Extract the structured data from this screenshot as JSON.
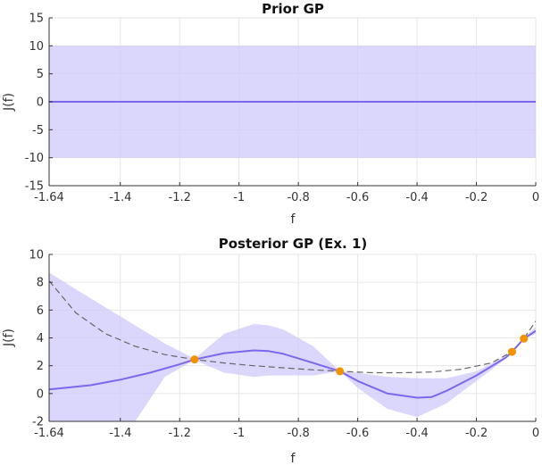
{
  "chart_data": [
    {
      "type": "line",
      "title": "Prior GP",
      "xlabel": "f",
      "ylabel": "J(f)",
      "xlim": [
        -1.64,
        0
      ],
      "ylim": [
        -15,
        15
      ],
      "xticks": [
        -1.64,
        -1.4,
        -1.2,
        -1,
        -0.8,
        -0.6,
        -0.4,
        -0.2,
        0
      ],
      "xtick_labels": [
        "-1.64",
        "-1.4",
        "-1.2",
        "-1",
        "-0.8",
        "-0.6",
        "-0.4",
        "-0.2",
        "0"
      ],
      "yticks": [
        -15,
        -10,
        -5,
        0,
        5,
        10,
        15
      ],
      "ytick_labels": [
        "-15",
        "-10",
        "-5",
        "0",
        "5",
        "10",
        "15"
      ],
      "grid": true,
      "series": [
        {
          "kind": "mean",
          "x": [
            -1.64,
            0
          ],
          "y": [
            0,
            0
          ]
        },
        {
          "kind": "confidence-band",
          "x": [
            -1.64,
            0
          ],
          "upper": [
            10,
            10
          ],
          "lower": [
            -10,
            -10
          ]
        }
      ],
      "colors": {
        "mean": "#7b68ee",
        "band": "#cfc8fb",
        "grid": "#e6e6e6"
      }
    },
    {
      "type": "line",
      "title": "Posterior GP (Ex. 1)",
      "xlabel": "f",
      "ylabel": "J(f)",
      "xlim": [
        -1.64,
        0
      ],
      "ylim": [
        -2,
        10
      ],
      "xticks": [
        -1.64,
        -1.4,
        -1.2,
        -1,
        -0.8,
        -0.6,
        -0.4,
        -0.2,
        0
      ],
      "xtick_labels": [
        "-1.64",
        "-1.4",
        "-1.2",
        "-1",
        "-0.8",
        "-0.6",
        "-0.4",
        "-0.2",
        "0"
      ],
      "yticks": [
        -2,
        0,
        2,
        4,
        6,
        8,
        10
      ],
      "ytick_labels": [
        "-2",
        "0",
        "2",
        "4",
        "6",
        "8",
        "10"
      ],
      "grid": true,
      "series": [
        {
          "kind": "mean",
          "x": [
            -1.64,
            -1.5,
            -1.4,
            -1.3,
            -1.2,
            -1.15,
            -1.05,
            -0.95,
            -0.9,
            -0.85,
            -0.75,
            -0.66,
            -0.6,
            -0.5,
            -0.4,
            -0.35,
            -0.3,
            -0.2,
            -0.1,
            -0.08,
            -0.04,
            0
          ],
          "y": [
            0.3,
            0.6,
            1.0,
            1.5,
            2.1,
            2.45,
            2.9,
            3.1,
            3.05,
            2.85,
            2.2,
            1.6,
            0.9,
            0.0,
            -0.3,
            -0.25,
            0.2,
            1.3,
            2.6,
            3.0,
            3.95,
            4.5
          ]
        },
        {
          "kind": "confidence-band",
          "x": [
            -1.64,
            -1.55,
            -1.45,
            -1.35,
            -1.25,
            -1.15,
            -1.05,
            -0.95,
            -0.9,
            -0.85,
            -0.75,
            -0.66,
            -0.6,
            -0.5,
            -0.4,
            -0.3,
            -0.2,
            -0.1,
            -0.08,
            -0.04,
            0
          ],
          "upper": [
            8.7,
            7.5,
            6.2,
            4.9,
            3.6,
            2.5,
            4.3,
            5.0,
            4.9,
            4.6,
            3.4,
            1.6,
            1.5,
            1.2,
            1.1,
            1.1,
            1.6,
            2.7,
            3.0,
            4.0,
            4.8
          ],
          "lower": [
            -2,
            -2,
            -2,
            -2,
            1.2,
            2.4,
            1.5,
            1.2,
            1.3,
            1.3,
            1.3,
            1.6,
            0.4,
            -1.1,
            -1.7,
            -0.7,
            0.9,
            2.5,
            3.0,
            3.9,
            4.3
          ]
        },
        {
          "kind": "reference-dashed",
          "x": [
            -1.64,
            -1.55,
            -1.45,
            -1.35,
            -1.25,
            -1.15,
            -1.05,
            -0.95,
            -0.85,
            -0.75,
            -0.66,
            -0.55,
            -0.45,
            -0.35,
            -0.25,
            -0.15,
            -0.08,
            -0.04,
            0
          ],
          "y": [
            8.1,
            5.8,
            4.3,
            3.4,
            2.8,
            2.45,
            2.2,
            2.0,
            1.85,
            1.7,
            1.6,
            1.5,
            1.5,
            1.55,
            1.75,
            2.2,
            3.0,
            3.95,
            5.2
          ]
        },
        {
          "kind": "observations",
          "x": [
            -1.15,
            -0.66,
            -0.08,
            -0.04
          ],
          "y": [
            2.45,
            1.6,
            3.0,
            3.95
          ]
        }
      ],
      "colors": {
        "mean": "#7b68ee",
        "band": "#cfc8fb",
        "dashed": "#666666",
        "points": "#f39200",
        "grid": "#e6e6e6"
      }
    }
  ]
}
